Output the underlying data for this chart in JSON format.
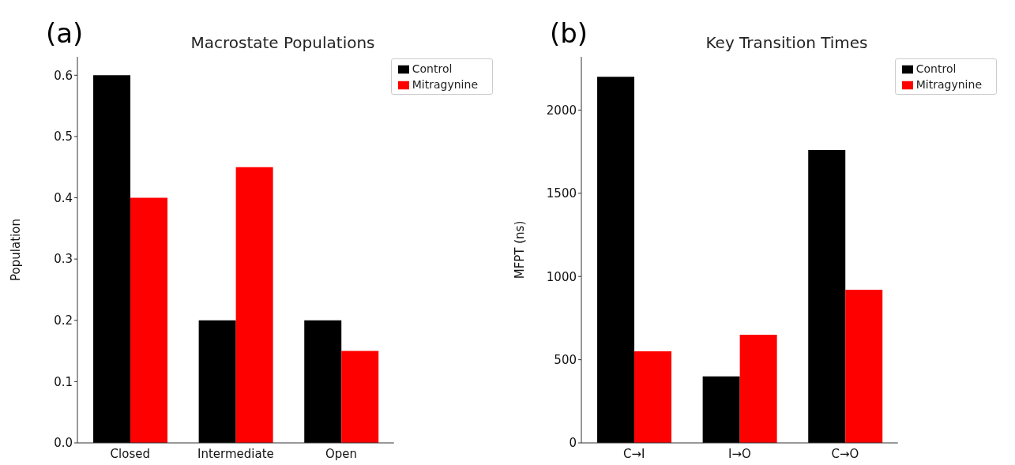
{
  "chart_data": [
    {
      "type": "bar",
      "title": "Macrostate Populations",
      "ylabel": "Population",
      "annotations": [
        "(a)"
      ],
      "categories": [
        "Closed",
        "Intermediate",
        "Open"
      ],
      "series": [
        {
          "name": "Control",
          "color": "#000000",
          "values": [
            0.6,
            0.2,
            0.2
          ]
        },
        {
          "name": "Mitragynine",
          "color": "#ff0000",
          "values": [
            0.4,
            0.45,
            0.15
          ]
        }
      ],
      "ylim": [
        0,
        0.63
      ],
      "yticks": [
        {
          "value": 0,
          "label": "0.0"
        },
        0.1,
        0.2,
        0.3,
        0.4,
        0.5,
        0.6
      ],
      "legend": "top right",
      "grid": false
    },
    {
      "type": "bar",
      "title": "Key Transition Times",
      "ylabel": "MFPT (ns)",
      "annotations": [
        "(b)"
      ],
      "categories": [
        "C→I",
        "I→O",
        "C→O"
      ],
      "series": [
        {
          "name": "Control",
          "color": "#000000",
          "values": [
            2200,
            400,
            1760
          ]
        },
        {
          "name": "Mitragynine",
          "color": "#ff0000",
          "values": [
            550,
            650,
            920
          ]
        }
      ],
      "ylim": [
        0,
        2320
      ],
      "yticks": [
        0,
        500,
        1000,
        1500,
        2000
      ],
      "legend": "top right",
      "grid": false
    }
  ]
}
